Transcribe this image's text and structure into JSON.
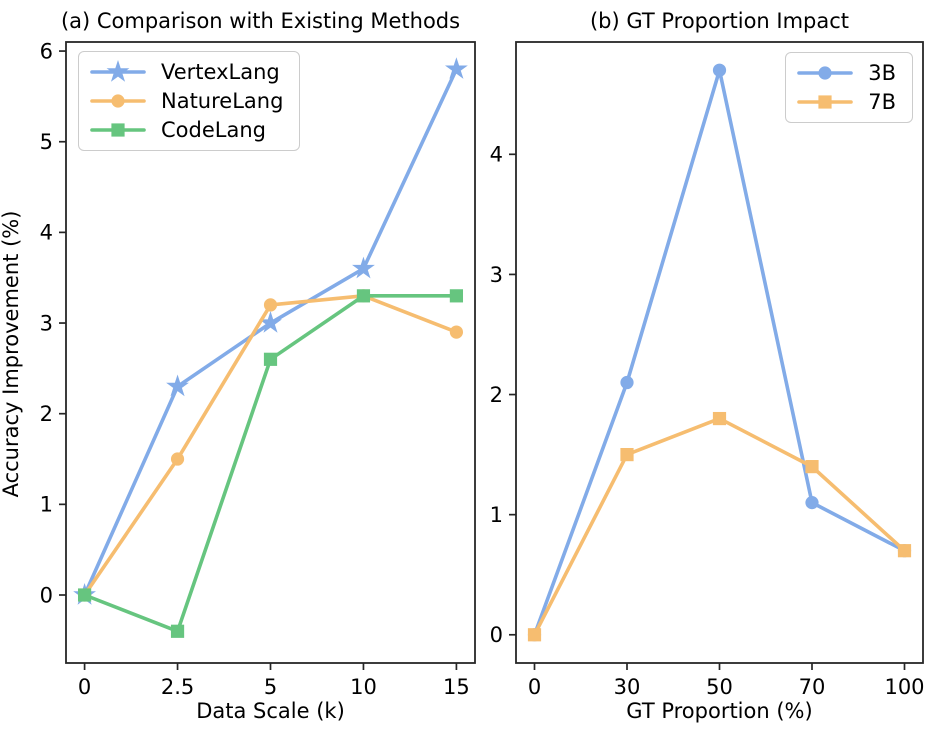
{
  "figure": {
    "background": "#ffffff",
    "spine_color": "#262626",
    "text_color": "#000000"
  },
  "chart_data": [
    {
      "type": "line",
      "title": "(a) Comparison with Existing Methods",
      "xlabel": "Data Scale (k)",
      "ylabel": "Accuracy Improvement (%)",
      "categories": [
        "0",
        "2.5",
        "5",
        "10",
        "15"
      ],
      "y_ticks": [
        "0",
        "1",
        "2",
        "3",
        "4",
        "5",
        "6"
      ],
      "y_tick_values": [
        0,
        1,
        2,
        3,
        4,
        5,
        6
      ],
      "ylim": [
        -0.75,
        6.1
      ],
      "grid": false,
      "legend_position": "top-left",
      "series": [
        {
          "name": "VertexLang",
          "color": "#82ABE8",
          "marker": "star",
          "values": [
            0,
            2.3,
            3.0,
            3.6,
            5.8
          ]
        },
        {
          "name": "NatureLang",
          "color": "#F6BD70",
          "marker": "circle",
          "values": [
            0,
            1.5,
            3.2,
            3.3,
            2.9
          ]
        },
        {
          "name": "CodeLang",
          "color": "#66C57F",
          "marker": "square",
          "values": [
            0,
            -0.4,
            2.6,
            3.3,
            3.3
          ]
        }
      ]
    },
    {
      "type": "line",
      "title": "(b) GT Proportion Impact",
      "xlabel": "GT Proportion (%)",
      "ylabel": "",
      "categories": [
        "0",
        "30",
        "50",
        "70",
        "100"
      ],
      "y_ticks": [
        "0",
        "1",
        "2",
        "3",
        "4"
      ],
      "y_tick_values": [
        0,
        1,
        2,
        3,
        4
      ],
      "ylim": [
        -0.235,
        4.935
      ],
      "grid": false,
      "legend_position": "top-right",
      "series": [
        {
          "name": "3B",
          "color": "#82ABE8",
          "marker": "circle",
          "values": [
            0,
            2.1,
            4.7,
            1.1,
            0.7
          ]
        },
        {
          "name": "7B",
          "color": "#F6BD70",
          "marker": "square",
          "values": [
            0,
            1.5,
            1.8,
            1.4,
            0.7
          ]
        }
      ]
    }
  ]
}
